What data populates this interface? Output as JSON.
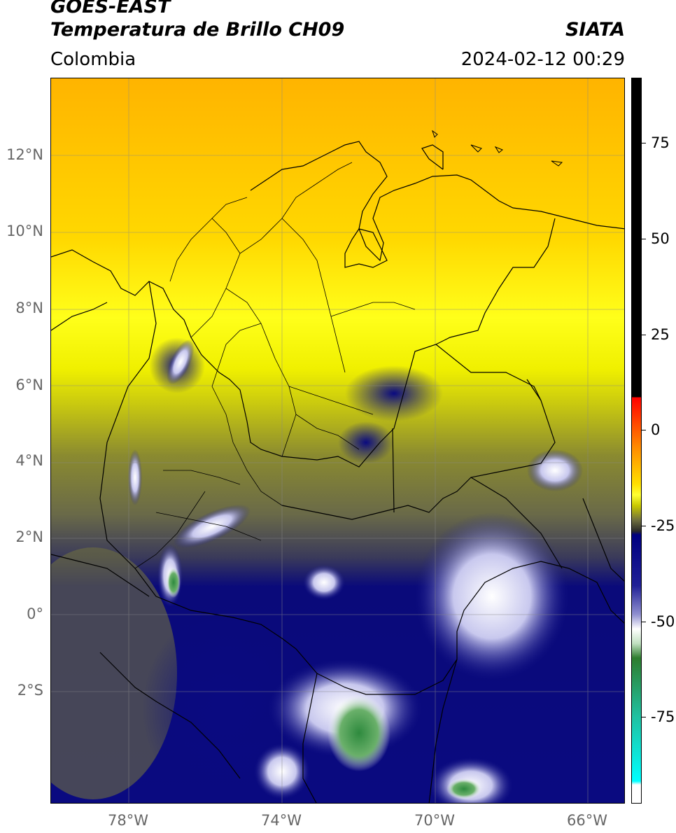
{
  "header": {
    "title_line1": "GOES-EAST",
    "title_line2": "Temperatura de Brillo CH09",
    "subtitle": "Colombia",
    "brand": "SIATA",
    "datetime": "2024-02-12 00:29"
  },
  "map": {
    "lat_labels": [
      "12°N",
      "10°N",
      "8°N",
      "6°N",
      "4°N",
      "2°N",
      "0°",
      "2°S"
    ],
    "lon_labels": [
      "78°W",
      "74°W",
      "70°W",
      "66°W"
    ]
  },
  "colorbar": {
    "tick_labels": [
      "75",
      "50",
      "25",
      "0",
      "-25",
      "-50",
      "-75"
    ]
  }
}
